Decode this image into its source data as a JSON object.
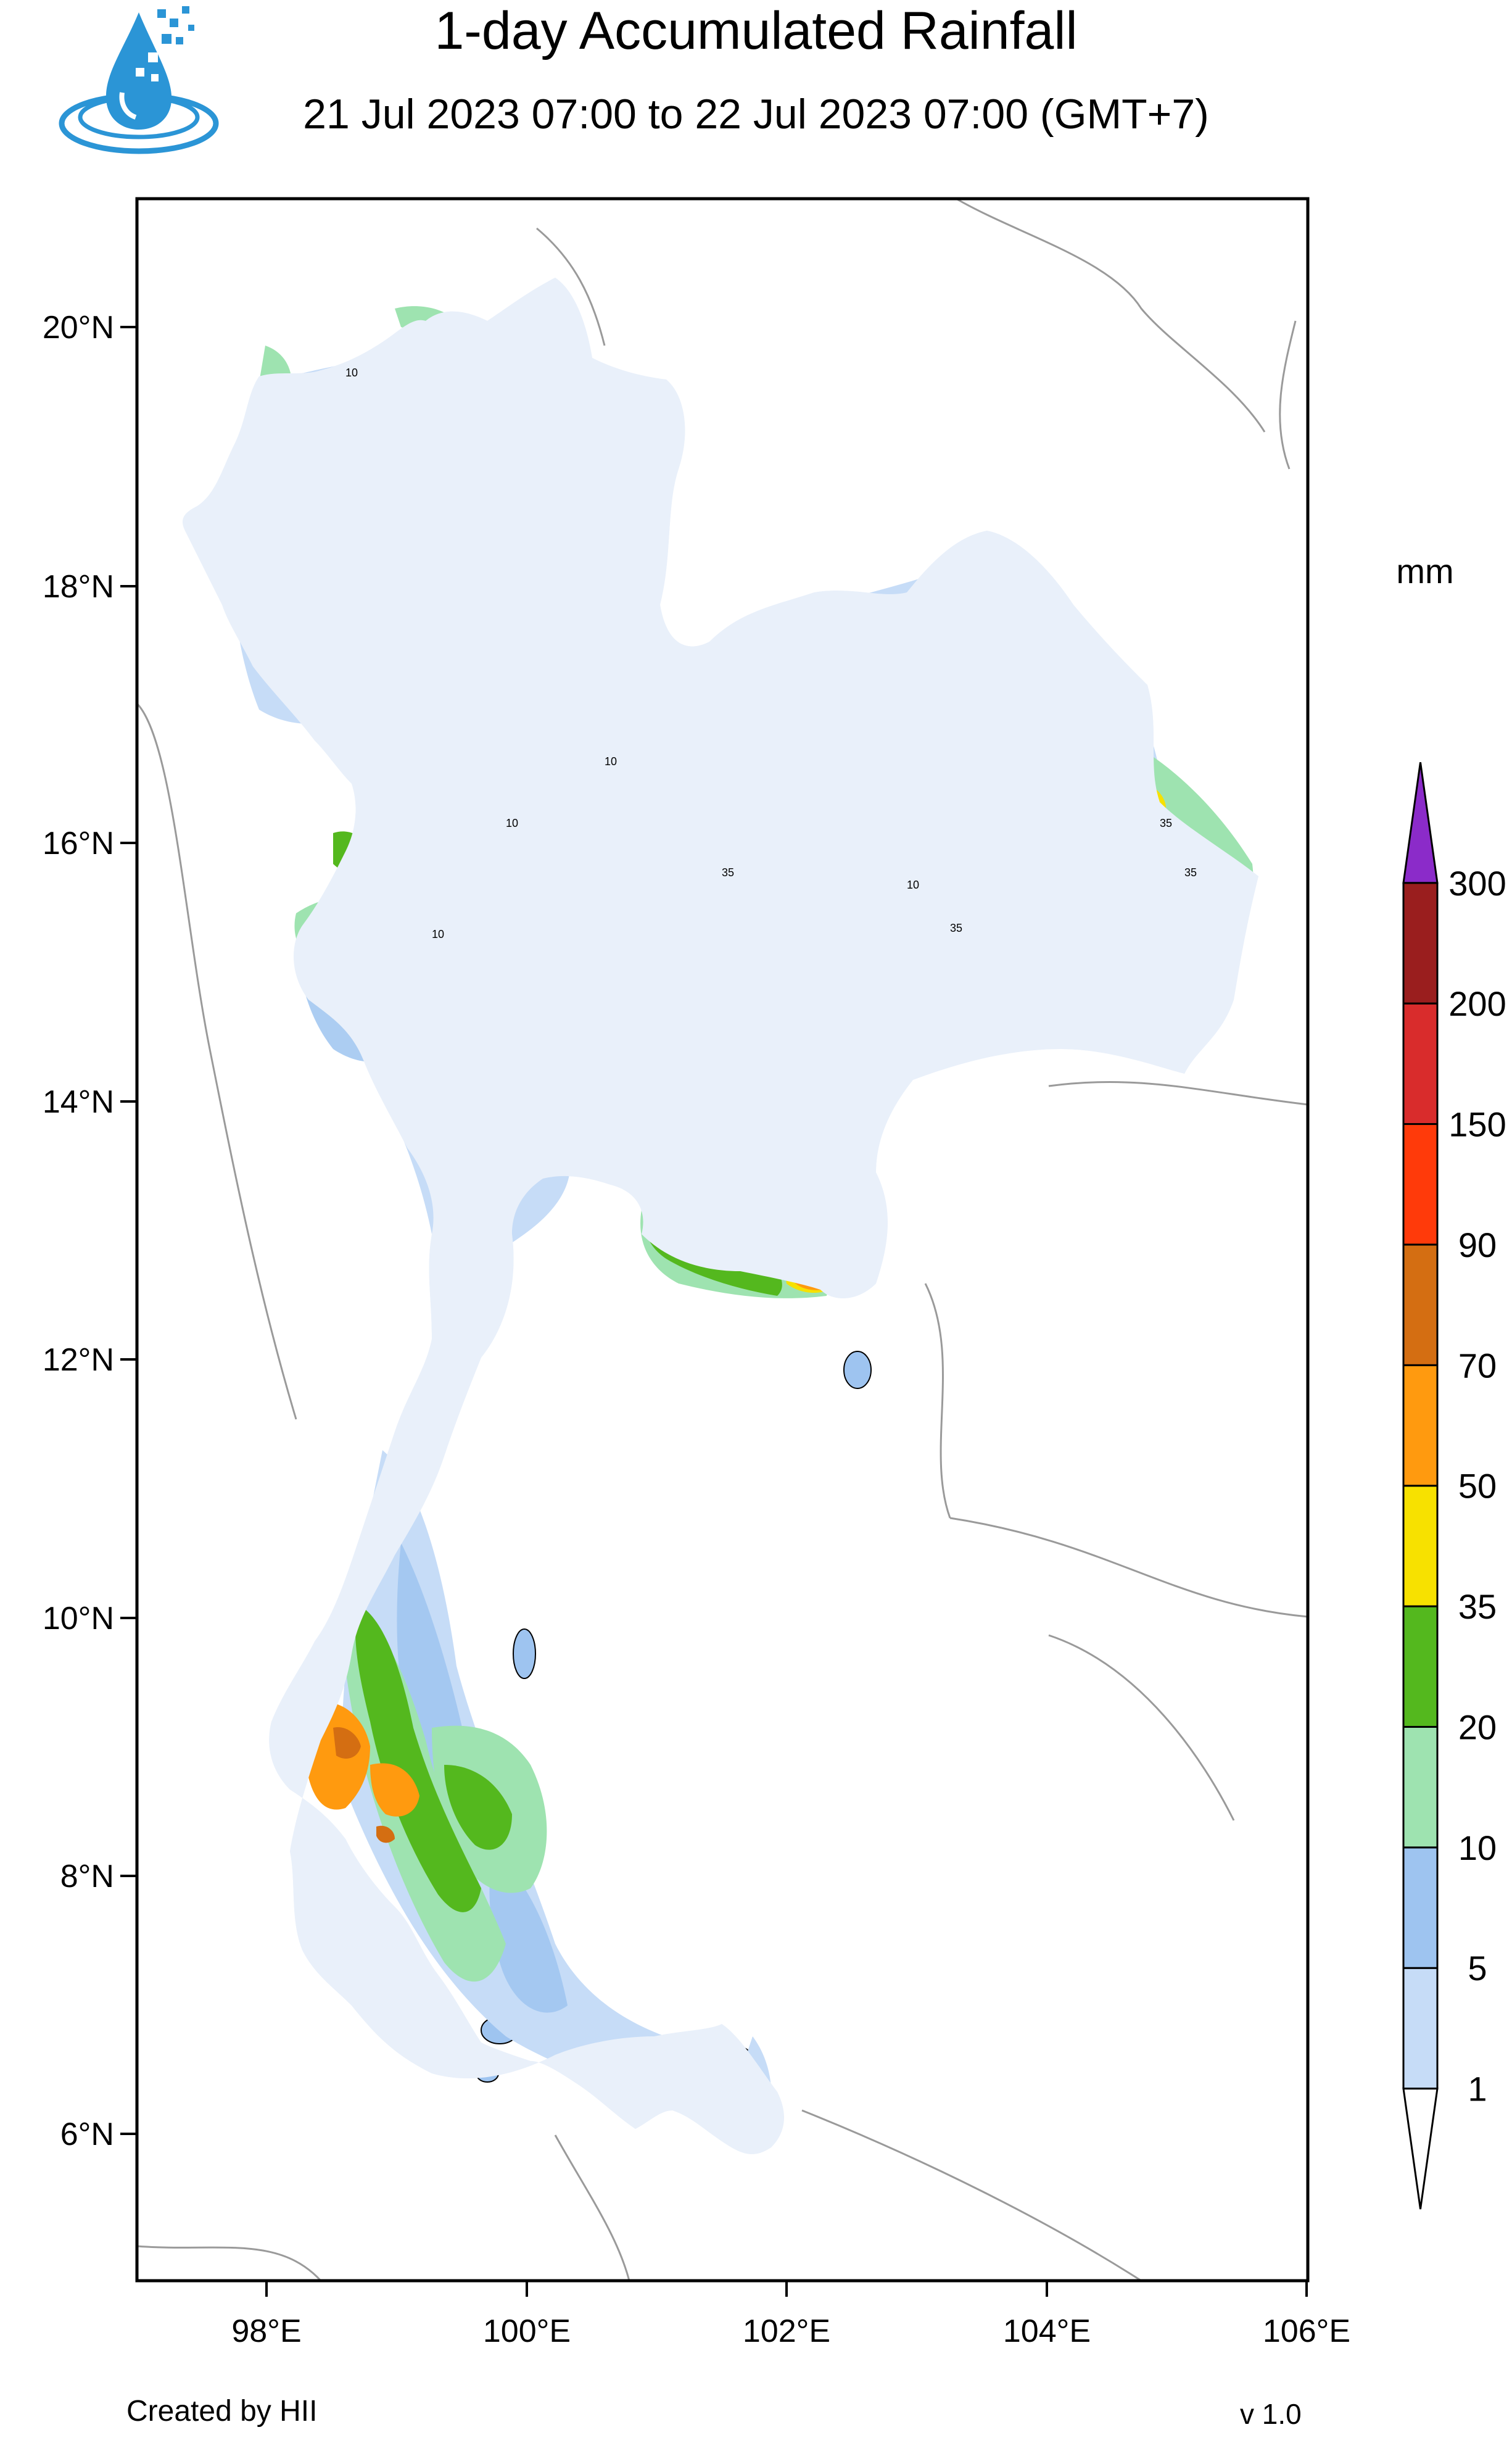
{
  "header": {
    "title": "1-day Accumulated Rainfall",
    "subtitle": "21 Jul 2023 07:00 to 22 Jul 2023 07:00 (GMT+7)"
  },
  "logo": {
    "icon": "water-drop-logo-icon",
    "color": "#2b95d6"
  },
  "axes": {
    "lat_labels": [
      "20°N",
      "18°N",
      "16°N",
      "14°N",
      "12°N",
      "10°N",
      "8°N",
      "6°N"
    ],
    "lon_labels": [
      "98°E",
      "100°E",
      "102°E",
      "104°E",
      "106°E"
    ]
  },
  "legend": {
    "unit": "mm",
    "colors": [
      "#ffffff",
      "#c6dcf7",
      "#9ec4f0",
      "#9ee3b0",
      "#54b81e",
      "#f7e100",
      "#ff9a0f",
      "#d46e12",
      "#ff3a0a",
      "#d92c2c",
      "#9a1e1e",
      "#8b2bc9"
    ],
    "labels": [
      "1",
      "5",
      "10",
      "20",
      "35",
      "50",
      "70",
      "90",
      "150",
      "200",
      "300"
    ]
  },
  "footer": {
    "credit": "Created by HII",
    "version": "v 1.0"
  }
}
